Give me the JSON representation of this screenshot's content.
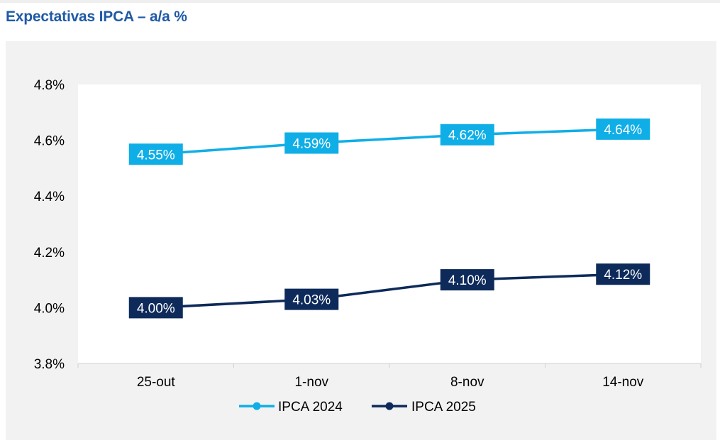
{
  "title": "Expectativas IPCA – a/a %",
  "colors": {
    "series_2024": "#10aee6",
    "series_2025": "#0d2a5a",
    "title": "#1f5aa6",
    "panel": "#f2f2f2",
    "plot": "#ffffff"
  },
  "chart_data": {
    "type": "line",
    "title": "Expectativas IPCA – a/a %",
    "categories": [
      "25-out",
      "1-nov",
      "8-nov",
      "14-nov"
    ],
    "series": [
      {
        "name": "IPCA 2024",
        "values": [
          4.55,
          4.59,
          4.62,
          4.64
        ],
        "labels": [
          "4.55%",
          "4.59%",
          "4.62%",
          "4.64%"
        ]
      },
      {
        "name": "IPCA 2025",
        "values": [
          4.0,
          4.03,
          4.1,
          4.12
        ],
        "labels": [
          "4.00%",
          "4.03%",
          "4.10%",
          "4.12%"
        ]
      }
    ],
    "ylim": [
      3.8,
      4.8
    ],
    "yticks": [
      3.8,
      4.0,
      4.2,
      4.4,
      4.6,
      4.8
    ],
    "ytick_labels": [
      "3.8%",
      "4.0%",
      "4.2%",
      "4.4%",
      "4.6%",
      "4.8%"
    ],
    "xlabel": "",
    "ylabel": "",
    "grid": false,
    "legend": "bottom-center"
  }
}
